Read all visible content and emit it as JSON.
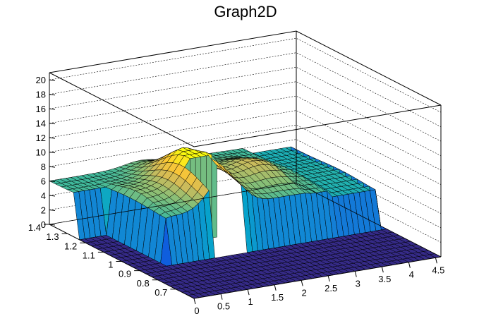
{
  "chart_data": {
    "type": "surface",
    "title": "Graph2D",
    "xlabel": "",
    "ylabel": "",
    "zlabel": "",
    "xlim": [
      0,
      4.6
    ],
    "ylim": [
      0.6,
      1.4
    ],
    "zlim": [
      0,
      21
    ],
    "x_ticks": [
      "0",
      "0.5",
      "1",
      "1.5",
      "2",
      "2.5",
      "3",
      "3.5",
      "4",
      "4.5"
    ],
    "y_ticks": [
      "0.7",
      "0.8",
      "0.9",
      "1",
      "1.1",
      "1.2",
      "1.3",
      "1.4"
    ],
    "z_ticks": [
      "0",
      "2",
      "4",
      "6",
      "8",
      "10",
      "12",
      "14",
      "16",
      "18",
      "20"
    ],
    "grid": true,
    "colormap": [
      "#352a87",
      "#0f5cdd",
      "#1481d6",
      "#06a4ca",
      "#2eb7a4",
      "#87bf77",
      "#d1bb59",
      "#fec832",
      "#f9fb0e"
    ],
    "colormap_name": "parula",
    "description_values": {
      "plateau_height": 6,
      "peak_height": 11.5,
      "gap_x_range": [
        1.45,
        1.95
      ],
      "gap_y_max": 1.05
    }
  }
}
